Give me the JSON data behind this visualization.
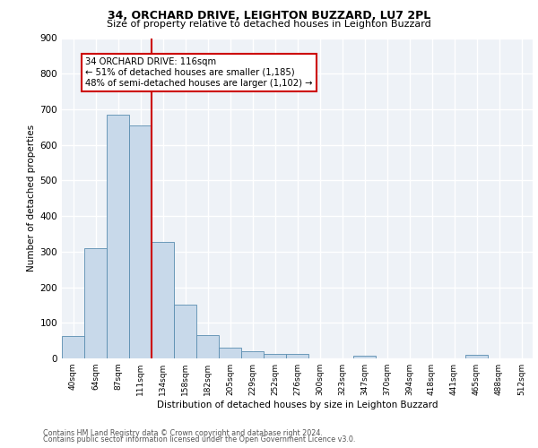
{
  "title1": "34, ORCHARD DRIVE, LEIGHTON BUZZARD, LU7 2PL",
  "title2": "Size of property relative to detached houses in Leighton Buzzard",
  "xlabel": "Distribution of detached houses by size in Leighton Buzzard",
  "ylabel": "Number of detached properties",
  "footnote1": "Contains HM Land Registry data © Crown copyright and database right 2024.",
  "footnote2": "Contains public sector information licensed under the Open Government Licence v3.0.",
  "bar_labels": [
    "40sqm",
    "64sqm",
    "87sqm",
    "111sqm",
    "134sqm",
    "158sqm",
    "182sqm",
    "205sqm",
    "229sqm",
    "252sqm",
    "276sqm",
    "300sqm",
    "323sqm",
    "347sqm",
    "370sqm",
    "394sqm",
    "418sqm",
    "441sqm",
    "465sqm",
    "488sqm",
    "512sqm"
  ],
  "bar_values": [
    62,
    310,
    685,
    655,
    328,
    152,
    65,
    30,
    20,
    12,
    13,
    0,
    0,
    7,
    0,
    0,
    0,
    0,
    10,
    0,
    0
  ],
  "bar_color": "#c8d9ea",
  "bar_edge_color": "#5a8db0",
  "vline_color": "#cc0000",
  "annotation_text": "34 ORCHARD DRIVE: 116sqm\n← 51% of detached houses are smaller (1,185)\n48% of semi-detached houses are larger (1,102) →",
  "annotation_box_color": "white",
  "annotation_box_edge": "#cc0000",
  "ylim": [
    0,
    900
  ],
  "yticks": [
    0,
    100,
    200,
    300,
    400,
    500,
    600,
    700,
    800,
    900
  ],
  "background_color": "#eef2f7",
  "grid_color": "white",
  "vline_index": 3
}
